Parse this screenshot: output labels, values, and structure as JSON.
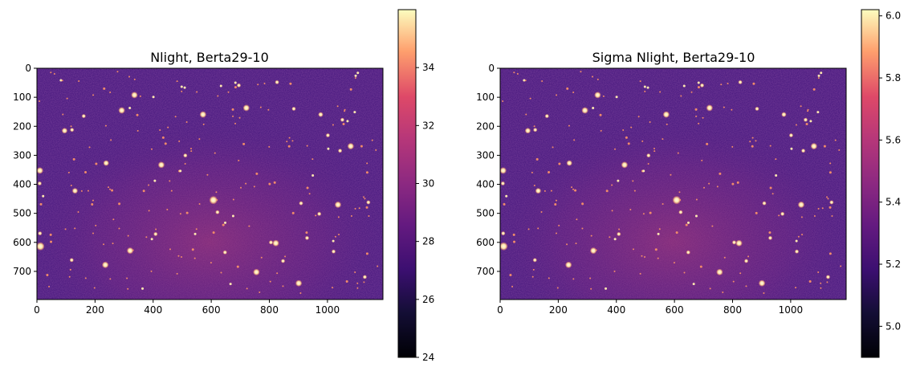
{
  "chart_data": [
    {
      "type": "heatmap",
      "title": "Nlight, Berta29-10",
      "xlabel": "",
      "ylabel": "",
      "x_range": [
        0,
        1191
      ],
      "y_range": [
        0,
        797
      ],
      "xticks": [
        "0",
        "200",
        "400",
        "600",
        "800",
        "1000"
      ],
      "yticks": [
        "0",
        "100",
        "200",
        "300",
        "400",
        "500",
        "600",
        "700"
      ],
      "colormap": "magma",
      "colorbar": {
        "min": 24,
        "max": 36,
        "ticks": [
          "24",
          "26",
          "28",
          "30",
          "32",
          "34"
        ]
      },
      "grid": false
    },
    {
      "type": "heatmap",
      "title": "Sigma Nlight, Berta29-10",
      "xlabel": "",
      "ylabel": "",
      "x_range": [
        0,
        1191
      ],
      "y_range": [
        0,
        797
      ],
      "xticks": [
        "0",
        "200",
        "400",
        "600",
        "800",
        "1000"
      ],
      "yticks": [
        "0",
        "100",
        "200",
        "300",
        "400",
        "500",
        "600",
        "700"
      ],
      "colormap": "magma",
      "colorbar": {
        "min": 4.9,
        "max": 6.02,
        "ticks": [
          "5.0",
          "5.2",
          "5.4",
          "5.6",
          "5.8",
          "6.0"
        ]
      },
      "grid": false
    }
  ],
  "colors": {
    "background_field": "#4a1b80",
    "star_core": "#fffae6",
    "star_halo": "#fb8a5e"
  }
}
